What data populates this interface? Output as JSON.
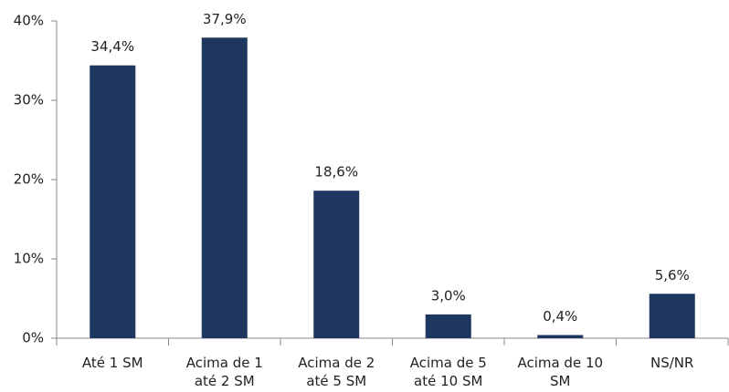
{
  "chart_data": {
    "type": "bar",
    "categories": [
      "Até 1 SM",
      "Acima de 1 até 2 SM",
      "Acima de 2 até 5 SM",
      "Acima de 5 até 10 SM",
      "Acima de 10 SM",
      "NS/NR"
    ],
    "values": [
      34.4,
      37.9,
      18.6,
      3.0,
      0.4,
      5.6
    ],
    "value_labels": [
      "34,4%",
      "37,9%",
      "18,6%",
      "3,0%",
      "0,4%",
      "5,6%"
    ],
    "color": "#1d3760",
    "ylim": [
      0,
      40
    ],
    "yticks": [
      {
        "value": 0,
        "label": "0%"
      },
      {
        "value": 10,
        "label": "10%"
      },
      {
        "value": 20,
        "label": "20%"
      },
      {
        "value": 30,
        "label": "30%"
      },
      {
        "value": 40,
        "label": "40%"
      }
    ],
    "grid": false
  }
}
